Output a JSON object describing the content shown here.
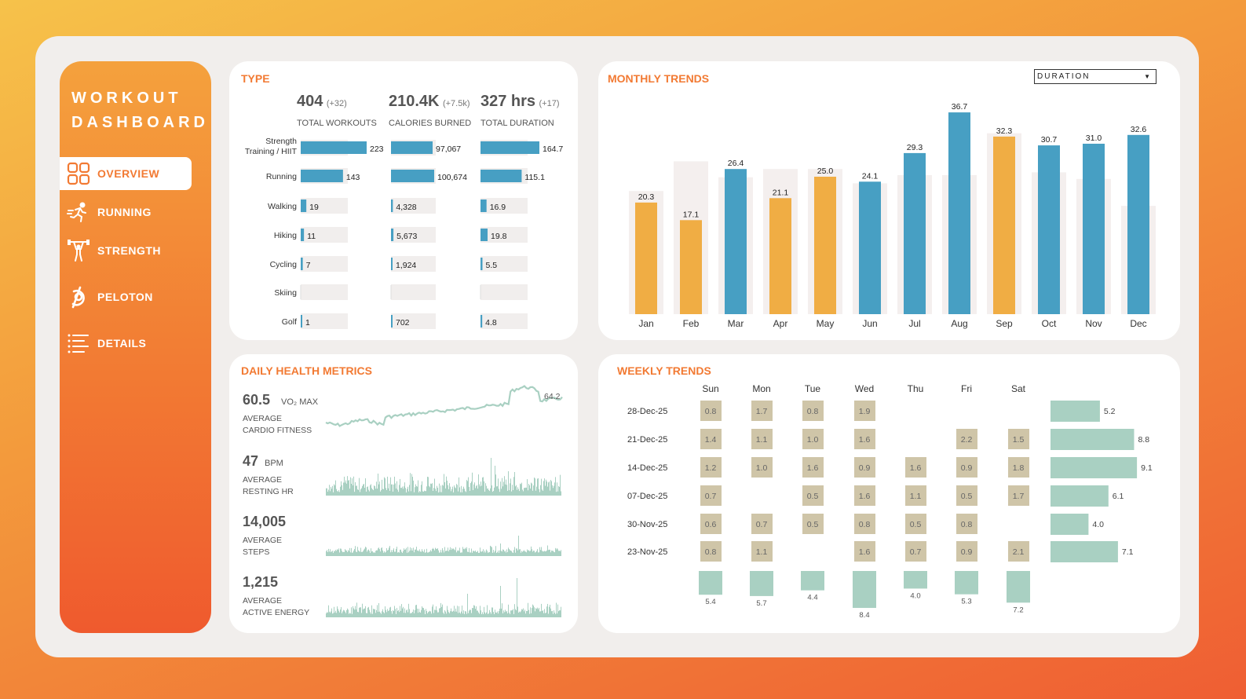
{
  "app": {
    "title_line1": "WORKOUT",
    "title_line2": "DASHBOARD"
  },
  "nav": [
    {
      "label": "OVERVIEW",
      "icon": "grid-icon",
      "active": true
    },
    {
      "label": "RUNNING",
      "icon": "runner-icon",
      "active": false
    },
    {
      "label": "STRENGTH",
      "icon": "weightlifter-icon",
      "active": false
    },
    {
      "label": "PELOTON",
      "icon": "peloton-icon",
      "active": false
    },
    {
      "label": "DETAILS",
      "icon": "list-icon",
      "active": false
    }
  ],
  "colors": {
    "orange": "#f0ad44",
    "blue": "#479fc3",
    "teal": "#a9d0c2",
    "tan": "#cfc5a8",
    "accent": "#f27a33"
  },
  "type": {
    "title": "TYPE",
    "kpis": [
      {
        "value": "404",
        "delta": "(+32)",
        "caption": "TOTAL WORKOUTS"
      },
      {
        "value": "210.4K",
        "delta": "(+7.5k)",
        "caption": "CALORIES BURNED"
      },
      {
        "value": "327 hrs",
        "delta": "(+17)",
        "caption": "TOTAL DURATION"
      }
    ],
    "categories": [
      "Strength Training / HIIT",
      "Running",
      "Walking",
      "Hiking",
      "Cycling",
      "Skiing",
      "Golf"
    ],
    "workouts": [
      223,
      143,
      19,
      11,
      7,
      null,
      1
    ],
    "workouts_labels": [
      "223",
      "143",
      "19",
      "11",
      "7",
      "",
      "1"
    ],
    "calories": [
      97067,
      100674,
      4328,
      5673,
      1924,
      null,
      702
    ],
    "calories_labels": [
      "97,067",
      "100,674",
      "4,328",
      "5,673",
      "1,924",
      "",
      "702"
    ],
    "duration": [
      164.7,
      115.1,
      16.9,
      19.8,
      5.5,
      null,
      4.8
    ],
    "duration_labels": [
      "164.7",
      "115.1",
      "16.9",
      "19.8",
      "5.5",
      "",
      "4.8"
    ]
  },
  "monthly": {
    "title": "MONTHLY TRENDS",
    "dropdown": "DURATION",
    "chart_data": {
      "type": "bar",
      "categories": [
        "Jan",
        "Feb",
        "Mar",
        "Apr",
        "May",
        "Jun",
        "Jul",
        "Aug",
        "Sep",
        "Oct",
        "Nov",
        "Dec"
      ],
      "values": [
        20.3,
        17.1,
        26.4,
        21.1,
        25.0,
        24.1,
        29.3,
        36.7,
        32.3,
        30.7,
        31.0,
        32.6
      ],
      "labels": [
        "20.3",
        "17.1",
        "26.4",
        "21.1",
        "25.0",
        "24.1",
        "29.3",
        "36.7",
        "32.3",
        "30.7",
        "31.0",
        "32.6"
      ],
      "background": [
        22.4,
        27.8,
        24.9,
        26.4,
        26.4,
        23.8,
        25.3,
        25.3,
        32.9,
        25.8,
        24.6,
        19.7
      ],
      "bar_colors": [
        "orange",
        "orange",
        "blue",
        "orange",
        "orange",
        "blue",
        "blue",
        "blue",
        "orange",
        "blue",
        "blue",
        "blue"
      ],
      "ylim": [
        0,
        40
      ]
    }
  },
  "health": {
    "title": "DAILY HEALTH METRICS",
    "metrics": [
      {
        "value": "60.5",
        "unit": "VO₂ MAX",
        "cap1": "AVERAGE",
        "cap2": "CARDIO FITNESS",
        "last": "64.2"
      },
      {
        "value": "47",
        "unit": "BPM",
        "cap1": "AVERAGE",
        "cap2": "RESTING HR",
        "last": ""
      },
      {
        "value": "14,005",
        "unit": "",
        "cap1": "AVERAGE",
        "cap2": "STEPS",
        "last": ""
      },
      {
        "value": "1,215",
        "unit": "",
        "cap1": "AVERAGE",
        "cap2": "ACTIVE ENERGY",
        "last": ""
      }
    ]
  },
  "weekly": {
    "title": "WEEKLY TRENDS",
    "days": [
      "Sun",
      "Mon",
      "Tue",
      "Wed",
      "Thu",
      "Fri",
      "Sat"
    ],
    "weeks": [
      "28-Dec-25",
      "21-Dec-25",
      "14-Dec-25",
      "07-Dec-25",
      "30-Nov-25",
      "23-Nov-25"
    ],
    "grid": [
      [
        "0.8",
        "1.7",
        "0.8",
        "1.9",
        "",
        "",
        ""
      ],
      [
        "1.4",
        "1.1",
        "1.0",
        "1.6",
        "",
        "2.2",
        "1.5"
      ],
      [
        "1.2",
        "1.0",
        "1.6",
        "0.9",
        "1.6",
        "0.9",
        "1.8"
      ],
      [
        "0.7",
        "",
        "0.5",
        "1.6",
        "1.1",
        "0.5",
        "1.7"
      ],
      [
        "0.6",
        "0.7",
        "0.5",
        "0.8",
        "0.5",
        "0.8",
        ""
      ],
      [
        "0.8",
        "1.1",
        "",
        "1.6",
        "0.7",
        "0.9",
        "2.1"
      ]
    ],
    "week_totals": [
      5.2,
      8.8,
      9.1,
      6.1,
      4.0,
      7.1
    ],
    "week_totals_labels": [
      "5.2",
      "8.8",
      "9.1",
      "6.1",
      "4.0",
      "7.1"
    ],
    "day_totals": [
      5.4,
      5.7,
      4.4,
      8.4,
      4.0,
      5.3,
      7.2
    ],
    "day_totals_labels": [
      "5.4",
      "5.7",
      "4.4",
      "8.4",
      "4.0",
      "5.3",
      "7.2"
    ]
  }
}
